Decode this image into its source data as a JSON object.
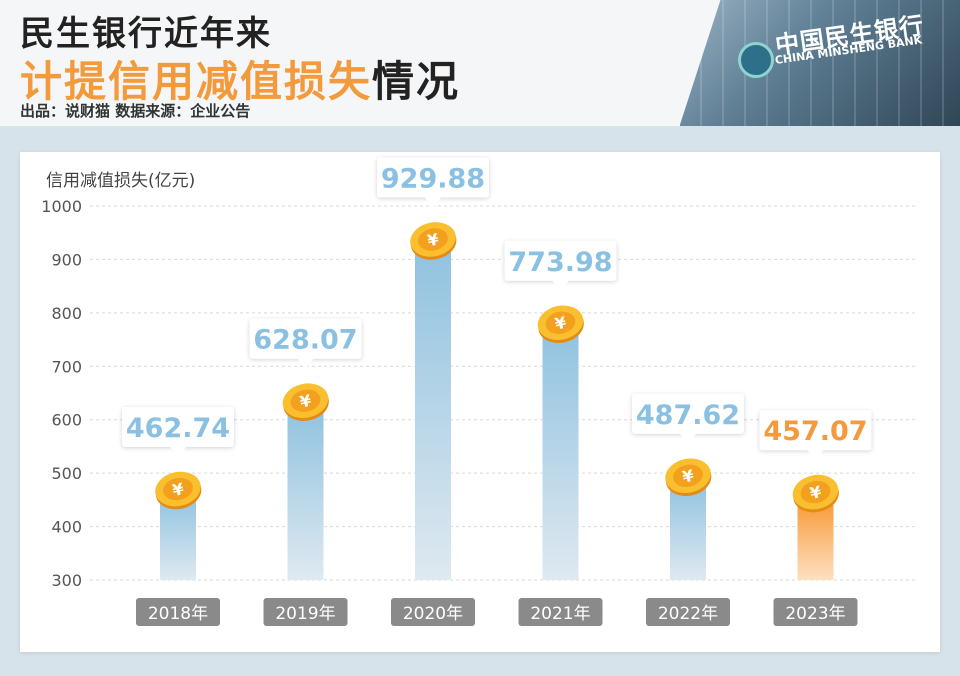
{
  "header": {
    "title_line1": "民生银行近年来",
    "title_line2_highlight": "计提信用减值损失",
    "title_line2_rest": "情况",
    "source": "出品：说财猫  数据来源：企业公告"
  },
  "bank_sign": {
    "cn": "中国民生银行",
    "en": "CHINA MINSHENG BANK"
  },
  "chart_data": {
    "type": "bar",
    "ylabel": "信用减值损失(亿元)",
    "ylim": [
      300,
      1000
    ],
    "yticks": [
      300,
      400,
      500,
      600,
      700,
      800,
      900,
      1000
    ],
    "categories": [
      "2018年",
      "2019年",
      "2020年",
      "2021年",
      "2022年",
      "2023年"
    ],
    "values": [
      462.74,
      628.07,
      929.88,
      773.98,
      487.62,
      457.07
    ],
    "value_labels": [
      "462.74",
      "628.07",
      "929.88",
      "773.98",
      "487.62",
      "457.07"
    ],
    "highlight_index": 5,
    "colors": {
      "normal": "#8fc2e0",
      "highlight": "#f7a24a",
      "label_normal": "#8ac1e2",
      "label_highlight": "#f39a3c",
      "coin": "#f7b52b"
    },
    "grid": true
  }
}
